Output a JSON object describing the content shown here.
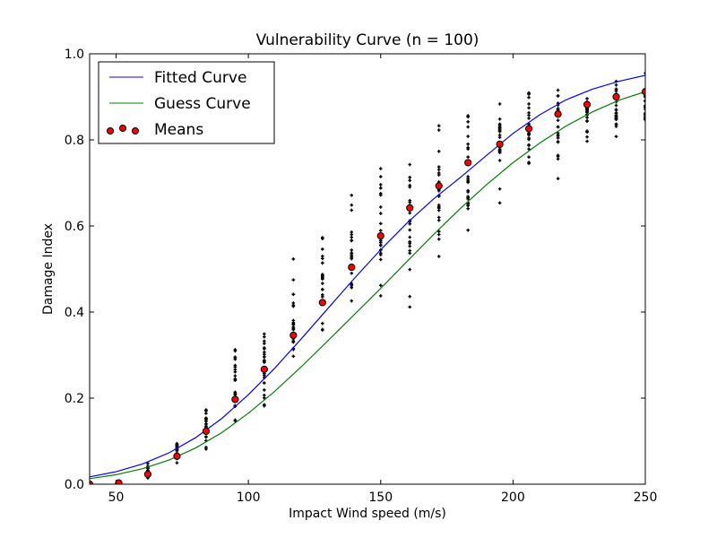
{
  "chart_data": {
    "type": "scatter",
    "title": "Vulnerability Curve (n = 100)",
    "xlabel": "Impact Wind speed (m/s)",
    "ylabel": "Damage Index",
    "xlim": [
      40,
      250
    ],
    "ylim": [
      0,
      1.0
    ],
    "x_ticks": [
      50,
      100,
      150,
      200,
      250
    ],
    "y_ticks": [
      0.0,
      0.2,
      0.4,
      0.6,
      0.8,
      1.0
    ],
    "x_tick_labels": [
      "50",
      "100",
      "150",
      "200",
      "250"
    ],
    "y_tick_labels": [
      "0.0",
      "0.2",
      "0.4",
      "0.6",
      "0.8",
      "1.0"
    ],
    "grid": false,
    "legend_position": "top-left",
    "legend": [
      "Fitted Curve",
      "Guess Curve",
      "Means"
    ],
    "series": [
      {
        "name": "Fitted Curve",
        "kind": "line",
        "color": "#0000ff",
        "x": [
          40,
          50,
          60,
          70,
          80,
          90,
          100,
          110,
          120,
          130,
          140,
          150,
          160,
          170,
          180,
          190,
          200,
          210,
          220,
          230,
          240,
          250
        ],
        "y": [
          0.017,
          0.029,
          0.047,
          0.073,
          0.108,
          0.153,
          0.208,
          0.27,
          0.338,
          0.408,
          0.478,
          0.545,
          0.607,
          0.663,
          0.712,
          0.764,
          0.815,
          0.858,
          0.893,
          0.918,
          0.936,
          0.95
        ]
      },
      {
        "name": "Guess Curve",
        "kind": "line",
        "color": "#008000",
        "x": [
          40,
          50,
          60,
          70,
          80,
          90,
          100,
          110,
          120,
          130,
          140,
          150,
          160,
          170,
          180,
          190,
          200,
          210,
          220,
          230,
          240,
          250
        ],
        "y": [
          0.013,
          0.022,
          0.036,
          0.056,
          0.084,
          0.12,
          0.165,
          0.216,
          0.273,
          0.333,
          0.394,
          0.455,
          0.518,
          0.58,
          0.64,
          0.696,
          0.747,
          0.792,
          0.832,
          0.865,
          0.892,
          0.912
        ]
      },
      {
        "name": "Means",
        "kind": "scatter",
        "color": "#ff0000",
        "x": [
          40,
          51,
          62,
          73,
          84,
          95,
          106,
          117,
          128,
          139,
          150,
          161,
          172,
          183,
          195,
          206,
          217,
          228,
          239,
          250
        ],
        "y": [
          0.0,
          0.003,
          0.023,
          0.065,
          0.123,
          0.197,
          0.267,
          0.346,
          0.422,
          0.504,
          0.577,
          0.642,
          0.693,
          0.747,
          0.79,
          0.826,
          0.86,
          0.882,
          0.9,
          0.912
        ]
      },
      {
        "kind": "samples",
        "color": "#000000",
        "x": [
          51,
          62,
          73,
          84,
          95,
          106,
          117,
          128,
          139,
          150,
          161,
          172,
          183,
          195,
          206,
          217,
          228,
          239,
          250
        ],
        "ymin": [
          0.0,
          0.0,
          0.03,
          0.06,
          0.11,
          0.15,
          0.22,
          0.3,
          0.32,
          0.4,
          0.4,
          0.48,
          0.53,
          0.61,
          0.69,
          0.69,
          0.75,
          0.79,
          0.79
        ],
        "ymax": [
          0.01,
          0.055,
          0.125,
          0.2,
          0.345,
          0.425,
          0.54,
          0.635,
          0.71,
          0.78,
          0.85,
          0.88,
          0.915,
          0.975,
          0.975,
          0.975,
          0.975,
          0.975,
          0.975
        ]
      }
    ]
  }
}
